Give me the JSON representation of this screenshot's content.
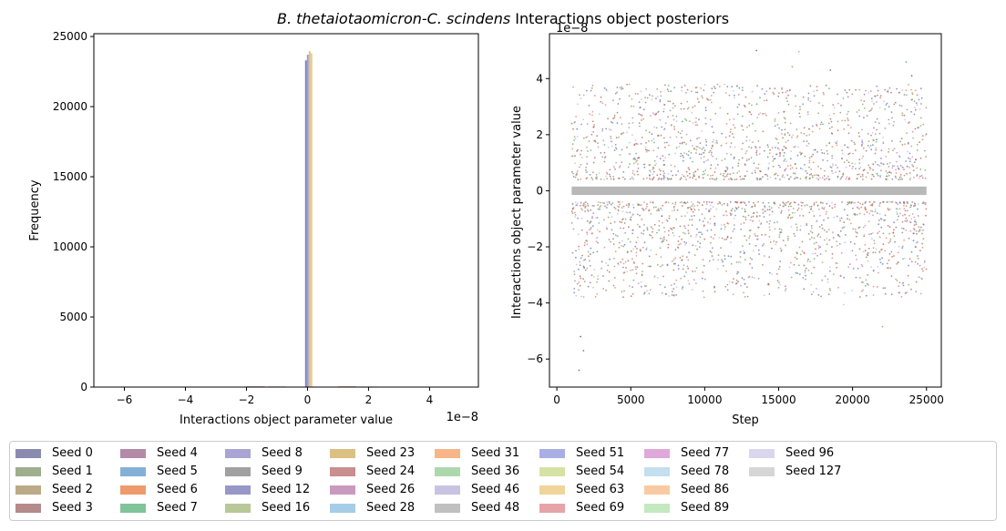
{
  "figure": {
    "suptitle_italic": "B. thetaiotaomicron-C. scindens",
    "suptitle_rest": " Interactions object posteriors"
  },
  "chart_data": [
    {
      "type": "bar",
      "subtype": "histogram",
      "xlabel": "Interactions object parameter value",
      "ylabel": "Frequency",
      "x_offset_label": "1e−8",
      "xlim": [
        -7.0,
        5.6
      ],
      "ylim": [
        0,
        25200
      ],
      "xticks": [
        -6,
        -4,
        -2,
        0,
        2,
        4
      ],
      "xtick_labels": [
        "−6",
        "−4",
        "−2",
        "0",
        "2",
        "4"
      ],
      "yticks": [
        0,
        5000,
        10000,
        15000,
        20000,
        25000
      ],
      "ytick_labels": [
        "0",
        "5000",
        "10000",
        "15000",
        "20000",
        "25000"
      ],
      "bars": [
        {
          "x": -0.08,
          "width": 0.06,
          "value": 23300,
          "color": "#6b6bb5"
        },
        {
          "x": -0.02,
          "width": 0.06,
          "value": 23700,
          "color": "#8a8ad0"
        },
        {
          "x": 0.04,
          "width": 0.06,
          "value": 23950,
          "color": "#d9b96a"
        },
        {
          "x": 0.1,
          "width": 0.06,
          "value": 23800,
          "color": "#e3c67e"
        },
        {
          "x": -2.0,
          "width": 0.6,
          "value": 60,
          "color": "#c98b8b"
        },
        {
          "x": -1.3,
          "width": 0.6,
          "value": 45,
          "color": "#c98b8b"
        },
        {
          "x": 1.0,
          "width": 0.6,
          "value": 55,
          "color": "#c98b8b"
        },
        {
          "x": 1.7,
          "width": 0.6,
          "value": 40,
          "color": "#c98b8b"
        }
      ],
      "grid": false
    },
    {
      "type": "scatter",
      "xlabel": "Step",
      "ylabel": "Interactions object parameter value",
      "y_offset_label": "1e−8",
      "xlim": [
        -500,
        26000
      ],
      "ylim": [
        -7.0,
        5.6
      ],
      "xticks": [
        0,
        5000,
        10000,
        15000,
        20000,
        25000
      ],
      "xtick_labels": [
        "0",
        "5000",
        "10000",
        "15000",
        "20000",
        "25000"
      ],
      "yticks": [
        -6,
        -4,
        -2,
        0,
        2,
        4
      ],
      "ytick_labels": [
        "−6",
        "−4",
        "−2",
        "0",
        "2",
        "4"
      ],
      "x_range": [
        1000,
        25000
      ],
      "zero_band_color": "#b8b8b8",
      "grid": false
    }
  ],
  "legend": {
    "items": [
      {
        "label": "Seed 0",
        "color": "#8a8ab0"
      },
      {
        "label": "Seed 1",
        "color": "#9fae8c"
      },
      {
        "label": "Seed 2",
        "color": "#bba987"
      },
      {
        "label": "Seed 3",
        "color": "#b58a8a"
      },
      {
        "label": "Seed 4",
        "color": "#b38aa8"
      },
      {
        "label": "Seed 5",
        "color": "#84b0d8"
      },
      {
        "label": "Seed 6",
        "color": "#ef9a6b"
      },
      {
        "label": "Seed 7",
        "color": "#80c49a"
      },
      {
        "label": "Seed 8",
        "color": "#a9a4d4"
      },
      {
        "label": "Seed 9",
        "color": "#a0a0a0"
      },
      {
        "label": "Seed 12",
        "color": "#9898c8"
      },
      {
        "label": "Seed 16",
        "color": "#b9c898"
      },
      {
        "label": "Seed 23",
        "color": "#dbc084"
      },
      {
        "label": "Seed 24",
        "color": "#c98e8e"
      },
      {
        "label": "Seed 26",
        "color": "#c99abf"
      },
      {
        "label": "Seed 28",
        "color": "#a6cde8"
      },
      {
        "label": "Seed 31",
        "color": "#f7b588"
      },
      {
        "label": "Seed 36",
        "color": "#acd9ac"
      },
      {
        "label": "Seed 46",
        "color": "#c8c3e2"
      },
      {
        "label": "Seed 48",
        "color": "#c0c0c0"
      },
      {
        "label": "Seed 51",
        "color": "#a9aee4"
      },
      {
        "label": "Seed 54",
        "color": "#d6e2a4"
      },
      {
        "label": "Seed 63",
        "color": "#f0d49a"
      },
      {
        "label": "Seed 69",
        "color": "#e6a3a8"
      },
      {
        "label": "Seed 77",
        "color": "#e0a8da"
      },
      {
        "label": "Seed 78",
        "color": "#c3dff0"
      },
      {
        "label": "Seed 86",
        "color": "#f9caa2"
      },
      {
        "label": "Seed 89",
        "color": "#c4e8c0"
      },
      {
        "label": "Seed 96",
        "color": "#d9d6ee"
      },
      {
        "label": "Seed 127",
        "color": "#d6d6d6"
      }
    ]
  },
  "scatter_colors": [
    "#6a6aa8",
    "#c0504d",
    "#7a9a5a",
    "#b05a3a",
    "#4a6fb8",
    "#e07a4a",
    "#9a7a5a",
    "#b7b7d7",
    "#c77aaa",
    "#5aa05a"
  ]
}
